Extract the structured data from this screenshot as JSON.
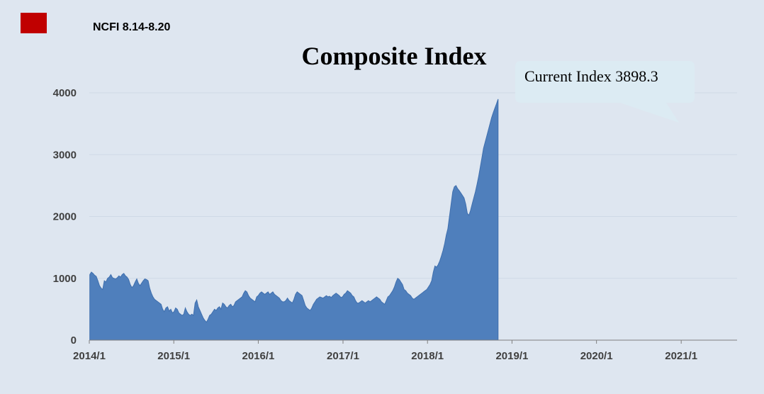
{
  "header": {
    "label": "NCFI 8.14-8.20",
    "badge_color": "#c00000"
  },
  "callout": {
    "text": "Current Index 3898.3"
  },
  "chart_data": {
    "type": "area",
    "title": "Composite Index",
    "xlabel": "",
    "ylabel": "",
    "ylim": [
      0,
      4000
    ],
    "y_ticks": [
      "0",
      "1000",
      "2000",
      "3000",
      "4000"
    ],
    "x_ticks": [
      "2014/1",
      "2015/1",
      "2016/1",
      "2017/1",
      "2018/1",
      "2019/1",
      "2020/1",
      "2021/1"
    ],
    "grid": true,
    "color": "#4f7fbc",
    "series": [
      {
        "x_start": "2014-01-03",
        "x_step_days": 7,
        "values": [
          1060,
          1100,
          1080,
          1050,
          1030,
          960,
          880,
          840,
          820,
          960,
          940,
          1000,
          1020,
          1060,
          1010,
          1000,
          990,
          1010,
          1040,
          1020,
          1060,
          1080,
          1040,
          1020,
          980,
          900,
          850,
          880,
          940,
          990,
          920,
          880,
          920,
          960,
          990,
          980,
          960,
          840,
          760,
          700,
          660,
          640,
          620,
          600,
          580,
          500,
          460,
          520,
          540,
          470,
          500,
          440,
          460,
          520,
          500,
          440,
          420,
          400,
          420,
          520,
          460,
          420,
          400,
          420,
          400,
          600,
          650,
          540,
          480,
          420,
          360,
          320,
          290,
          340,
          400,
          420,
          460,
          500,
          480,
          520,
          540,
          500,
          600,
          580,
          540,
          520,
          560,
          580,
          540,
          560,
          620,
          640,
          660,
          680,
          700,
          760,
          800,
          780,
          720,
          680,
          660,
          640,
          620,
          700,
          720,
          760,
          780,
          760,
          740,
          760,
          780,
          740,
          760,
          780,
          740,
          720,
          700,
          680,
          640,
          620,
          620,
          640,
          680,
          640,
          620,
          600,
          660,
          740,
          780,
          760,
          740,
          720,
          640,
          560,
          520,
          500,
          480,
          520,
          580,
          620,
          660,
          680,
          700,
          690,
          680,
          700,
          720,
          700,
          710,
          690,
          720,
          740,
          760,
          740,
          720,
          690,
          700,
          740,
          760,
          800,
          780,
          760,
          720,
          700,
          640,
          600,
          600,
          620,
          640,
          620,
          600,
          620,
          640,
          620,
          640,
          660,
          680,
          700,
          680,
          660,
          620,
          600,
          580,
          640,
          700,
          720,
          760,
          800,
          860,
          940,
          1000,
          980,
          940,
          900,
          820,
          800,
          760,
          740,
          720,
          680,
          660,
          680,
          700,
          720,
          740,
          760,
          780,
          800,
          820,
          860,
          900,
          960,
          1100,
          1200,
          1180,
          1220,
          1280,
          1360,
          1450,
          1560,
          1700,
          1800,
          2000,
          2200,
          2400,
          2480,
          2500,
          2450,
          2420,
          2380,
          2340,
          2300,
          2200,
          2050,
          2020,
          2100,
          2200,
          2300,
          2400,
          2520,
          2650,
          2800,
          2950,
          3100,
          3200,
          3300,
          3400,
          3500,
          3600,
          3680,
          3750,
          3820,
          3898.3
        ]
      }
    ]
  }
}
